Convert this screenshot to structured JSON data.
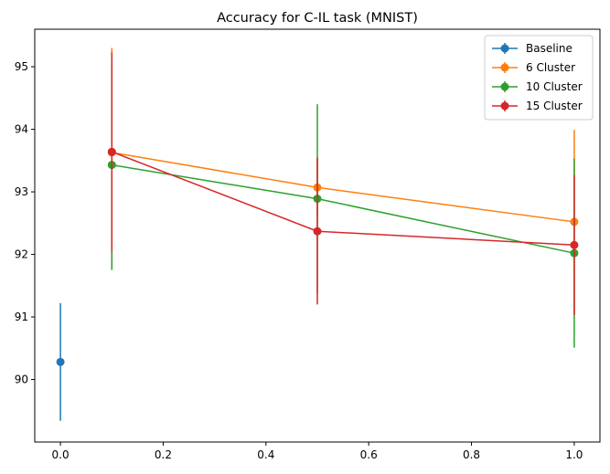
{
  "chart_data": {
    "type": "line",
    "title": "Accuracy for C-IL task (MNIST)",
    "xlabel": "",
    "ylabel": "",
    "xlim": [
      -0.05,
      1.05
    ],
    "ylim": [
      89.0,
      95.6
    ],
    "x_ticks": [
      0.0,
      0.2,
      0.4,
      0.6,
      0.8,
      1.0
    ],
    "x_tick_labels": [
      "0.0",
      "0.2",
      "0.4",
      "0.6",
      "0.8",
      "1.0"
    ],
    "y_ticks": [
      90,
      91,
      92,
      93,
      94,
      95
    ],
    "y_tick_labels": [
      "90",
      "91",
      "92",
      "93",
      "94",
      "95"
    ],
    "grid": false,
    "legend_position": "top-right",
    "series": [
      {
        "name": "Baseline",
        "color": "#1f77b4",
        "x": [
          0.0
        ],
        "y": [
          90.28
        ],
        "yerr": [
          0.94
        ]
      },
      {
        "name": "6 Cluster",
        "color": "#ff7f0e",
        "x": [
          0.1,
          0.5,
          1.0
        ],
        "y": [
          93.63,
          93.07,
          92.52
        ],
        "yerr": [
          1.67,
          0.48,
          1.47
        ]
      },
      {
        "name": "10 Cluster",
        "color": "#2ca02c",
        "x": [
          0.1,
          0.5,
          1.0
        ],
        "y": [
          93.43,
          92.89,
          92.02
        ],
        "yerr": [
          1.68,
          1.51,
          1.51
        ]
      },
      {
        "name": "15 Cluster",
        "color": "#d62728",
        "x": [
          0.1,
          0.5,
          1.0
        ],
        "y": [
          93.64,
          92.37,
          92.15
        ],
        "yerr": [
          1.59,
          1.17,
          1.12
        ]
      }
    ]
  }
}
